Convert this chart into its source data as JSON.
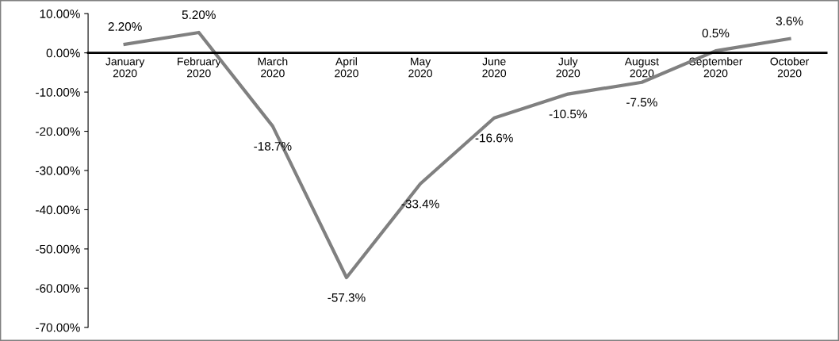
{
  "chart_data": {
    "type": "line",
    "categories": [
      "January 2020",
      "February 2020",
      "March 2020",
      "April 2020",
      "May 2020",
      "June 2020",
      "July 2020",
      "August 2020",
      "September 2020",
      "October 2020"
    ],
    "series": [
      {
        "color": "#808080",
        "values": [
          2.2,
          5.2,
          -18.7,
          -57.3,
          -33.4,
          -16.6,
          -10.5,
          -7.5,
          0.5,
          3.6
        ],
        "value_labels": [
          "2.20%",
          "5.20%",
          "-18.7%",
          "-57.3%",
          "-33.4%",
          "-16.6%",
          "-10.5%",
          "-7.5%",
          "0.5%",
          "3.6%"
        ]
      }
    ],
    "ylim": [
      -70,
      10
    ],
    "yticks": [
      {
        "value": -70,
        "label": "-70.00%"
      },
      {
        "value": -60,
        "label": "-60.00%"
      },
      {
        "value": -50,
        "label": "-50.00%"
      },
      {
        "value": -40,
        "label": "-40.00%"
      },
      {
        "value": -30,
        "label": "-30.00%"
      },
      {
        "value": -20,
        "label": "-20.00%"
      },
      {
        "value": -10,
        "label": "-10.00%"
      },
      {
        "value": 0,
        "label": "0.00%"
      },
      {
        "value": 10,
        "label": "10.00%"
      }
    ],
    "grid": false,
    "marker": "none",
    "line_style": "solid"
  }
}
